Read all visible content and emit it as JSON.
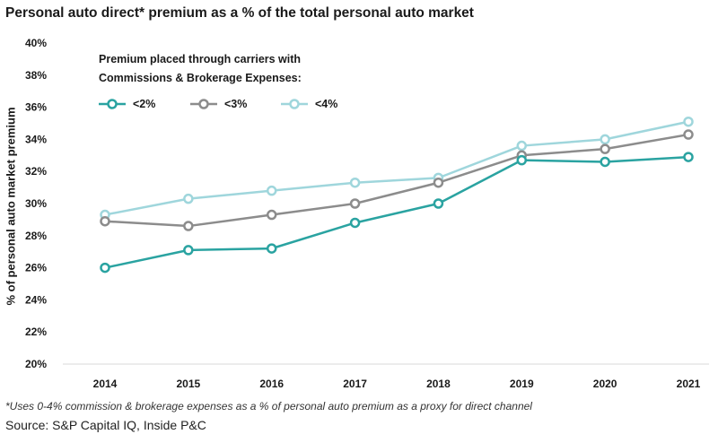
{
  "chart_data": {
    "type": "line",
    "title": "Personal auto direct* premium as a % of the total personal auto market",
    "xlabel": "",
    "ylabel": "% of personal auto market premium",
    "x": [
      "2014",
      "2015",
      "2016",
      "2017",
      "2018",
      "2019",
      "2020",
      "2021"
    ],
    "ylim": [
      20,
      40
    ],
    "yticks": [
      "20%",
      "22%",
      "24%",
      "26%",
      "28%",
      "30%",
      "32%",
      "34%",
      "36%",
      "38%",
      "40%"
    ],
    "grid": false,
    "legend": {
      "title_line1": "Premium placed through carriers with",
      "title_line2": "Commissions & Brokerage Expenses:",
      "placement": "top-left"
    },
    "series": [
      {
        "name": "<2%",
        "color": "#2aa3a1",
        "values": [
          26.0,
          27.1,
          27.2,
          28.8,
          30.0,
          32.7,
          32.6,
          32.9
        ]
      },
      {
        "name": "<3%",
        "color": "#8c8c8c",
        "values": [
          28.9,
          28.6,
          29.3,
          30.0,
          31.3,
          33.0,
          33.4,
          34.3
        ]
      },
      {
        "name": "<4%",
        "color": "#9fd6dc",
        "values": [
          29.3,
          30.3,
          30.8,
          31.3,
          31.6,
          33.6,
          34.0,
          35.1
        ]
      }
    ]
  },
  "footnote": "*Uses 0-4% commission & brokerage expenses as a % of personal auto premium as a proxy for direct channel",
  "source": "Source: S&P Capital IQ, Inside P&C"
}
